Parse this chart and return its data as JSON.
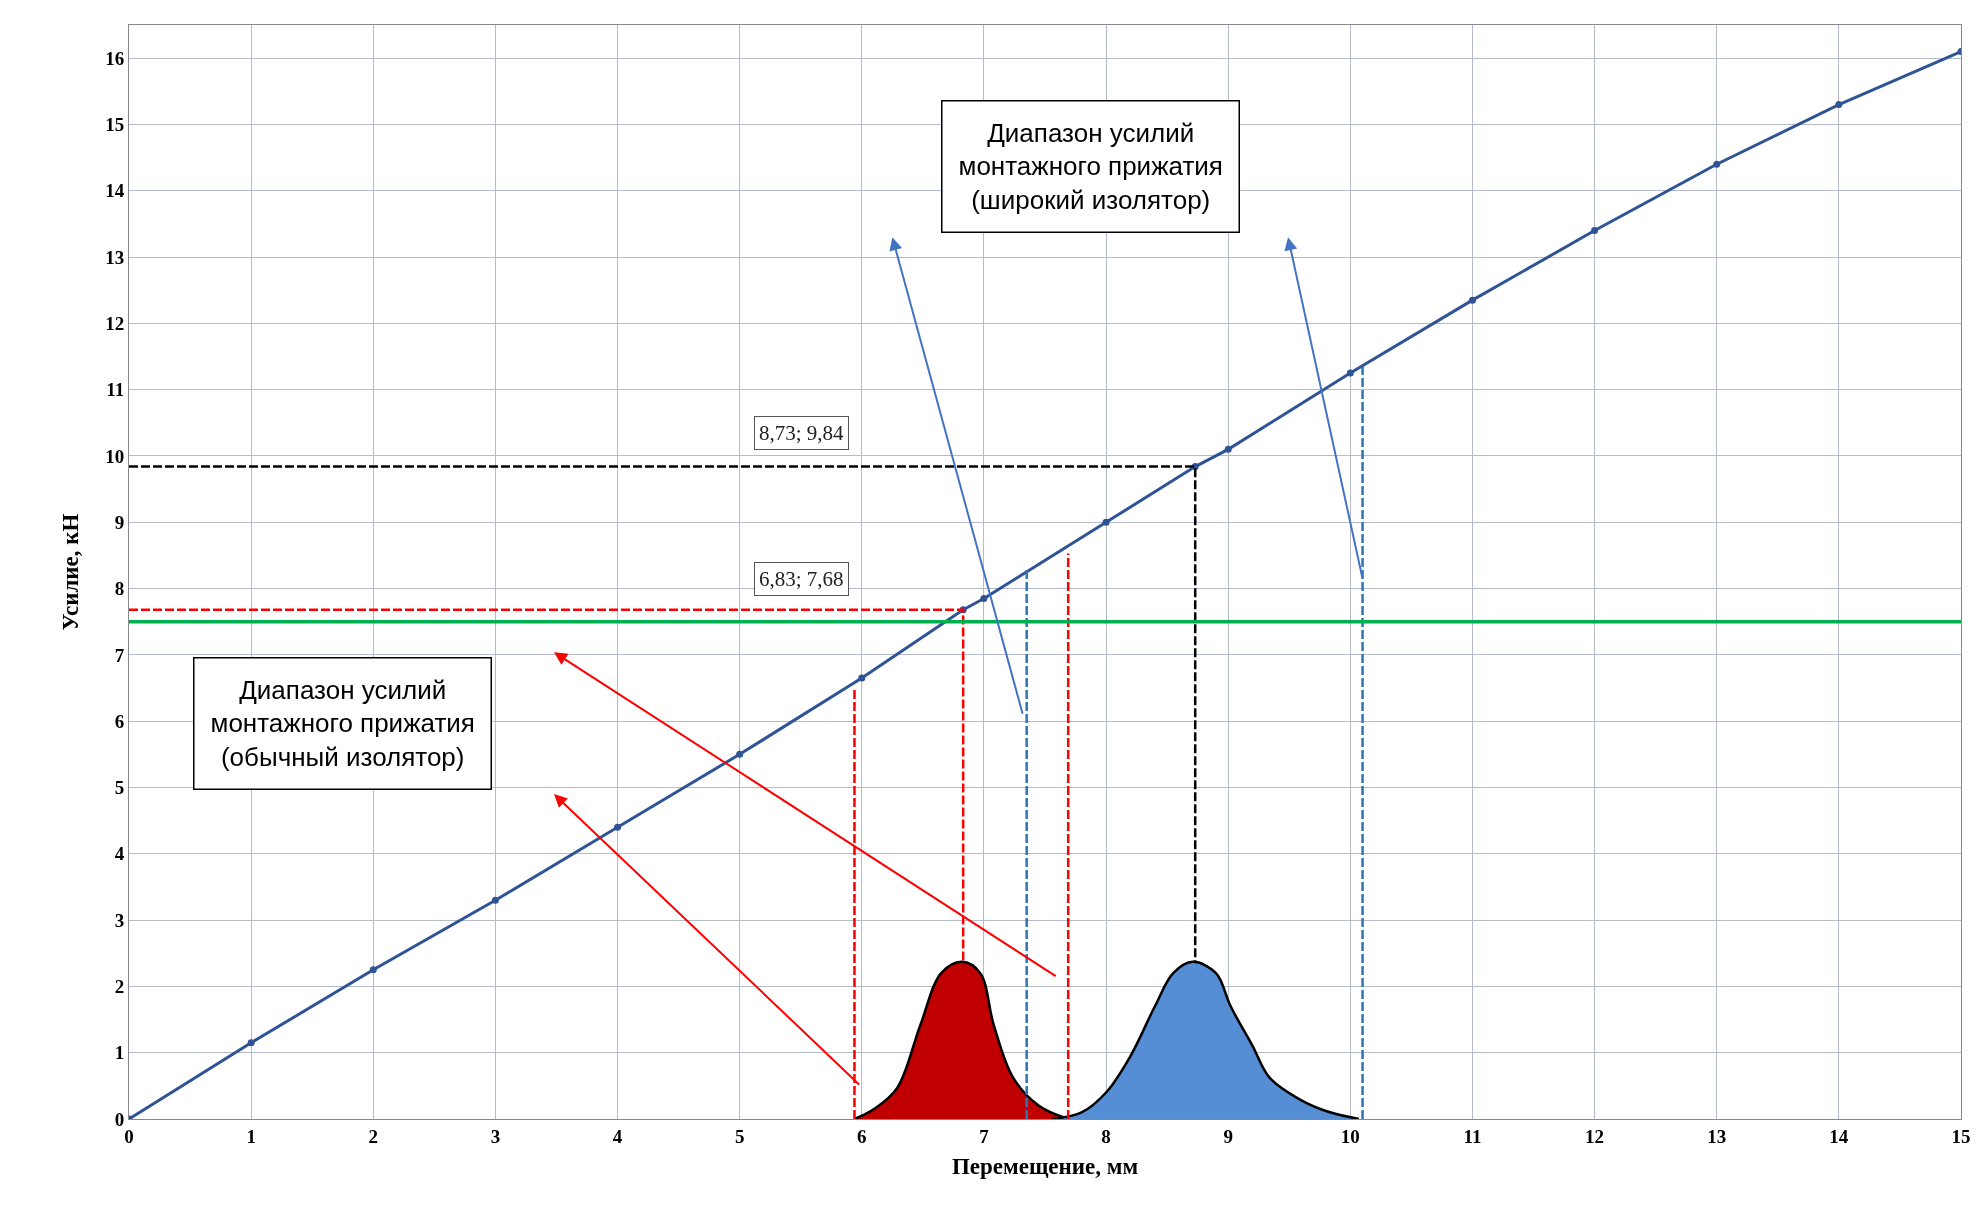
{
  "chart_data": {
    "type": "line",
    "xlabel": "Перемещение, мм",
    "ylabel": "Усилие, кН",
    "xlim": [
      0,
      15
    ],
    "xticks": [
      0,
      1,
      2,
      3,
      4,
      5,
      6,
      7,
      8,
      9,
      10,
      11,
      12,
      13,
      14,
      15
    ],
    "ylim": [
      0,
      16.5
    ],
    "yticks": [
      0,
      1,
      2,
      3,
      4,
      5,
      6,
      7,
      8,
      9,
      10,
      11,
      12,
      13,
      14,
      15,
      16
    ],
    "grid": true,
    "series": [
      {
        "type": "area",
        "color": "#c00000",
        "x": [
          5.94,
          6.1,
          6.29,
          6.48,
          6.65,
          6.82,
          6.97,
          7.08,
          7.24,
          7.45,
          7.69
        ],
        "values": [
          0,
          0.15,
          0.47,
          1.42,
          2.2,
          2.37,
          2.2,
          1.42,
          0.62,
          0.2,
          0
        ]
      },
      {
        "type": "area",
        "color": "#558ed5",
        "x": [
          7.56,
          7.8,
          8.0,
          8.2,
          8.4,
          8.55,
          8.71,
          8.9,
          9.02,
          9.2,
          9.34,
          9.6,
          9.8,
          10.07
        ],
        "values": [
          0,
          0.1,
          0.4,
          0.95,
          1.7,
          2.2,
          2.37,
          2.2,
          1.7,
          1.1,
          0.62,
          0.28,
          0.12,
          0
        ]
      },
      {
        "color": "#2f5496",
        "marker": "circle",
        "line_style": "solid",
        "x": [
          0,
          1,
          2,
          3,
          4,
          5,
          6,
          6.83,
          7,
          8,
          8.73,
          9,
          10,
          11,
          12,
          13,
          14,
          15
        ],
        "values": [
          0,
          1.15,
          2.25,
          3.3,
          4.4,
          5.5,
          6.65,
          7.68,
          7.85,
          9.0,
          9.84,
          10.1,
          11.25,
          12.35,
          13.4,
          14.4,
          15.3,
          16.1
        ]
      },
      {
        "type": "line",
        "color": "#ff0000",
        "marker": "none",
        "line_style": "dashed",
        "x": [
          0,
          6.83,
          6.83
        ],
        "values": [
          7.68,
          7.68,
          2.37
        ]
      },
      {
        "type": "line",
        "color": "#000000",
        "marker": "none",
        "line_style": "dashed",
        "x": [
          0,
          8.73,
          8.73
        ],
        "values": [
          9.84,
          9.84,
          2.37
        ]
      },
      {
        "type": "line",
        "color": "#ff0000",
        "marker": "none",
        "line_style": "dashed",
        "x": [
          5.94,
          5.94
        ],
        "values": [
          0,
          6.47
        ]
      },
      {
        "type": "line",
        "color": "#ff0000",
        "marker": "none",
        "line_style": "dashed",
        "x": [
          7.69,
          7.69
        ],
        "values": [
          0,
          8.53
        ]
      },
      {
        "type": "line",
        "color": "#2e75b6",
        "marker": "none",
        "line_style": "dashed",
        "x": [
          7.35,
          7.35
        ],
        "values": [
          0,
          8.28
        ]
      },
      {
        "type": "line",
        "color": "#2e75b6",
        "marker": "none",
        "line_style": "dashed",
        "x": [
          10.1,
          10.1
        ],
        "values": [
          0,
          11.34
        ]
      }
    ],
    "ref_lines": [
      {
        "axis": "y",
        "value": 7.5,
        "color": "#00b050",
        "line_style": "solid"
      }
    ],
    "annotations": [
      "8,73; 9,84",
      "6,83; 7,68",
      "Диапазон усилий\nмонтажного прижатия\n(широкий изолятор)",
      "Диапазон усилий\nмонтажного прижатия\n(обычный изолятор)"
    ]
  }
}
